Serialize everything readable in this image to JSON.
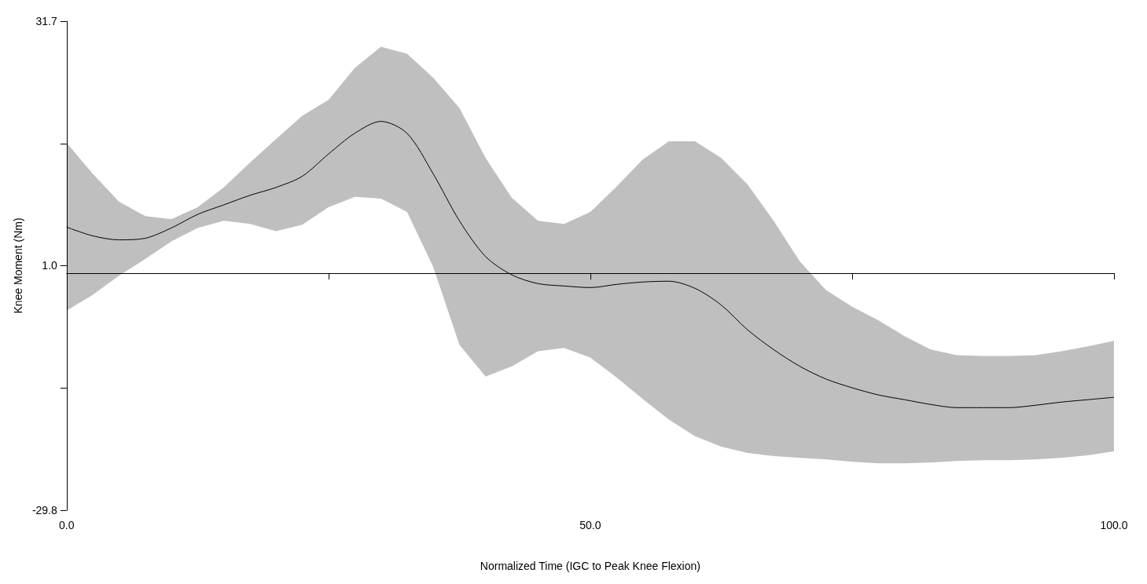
{
  "chart_data": {
    "type": "line",
    "xlabel": "Normalized Time (IGC to Peak Knee Flexion)",
    "ylabel": "Knee Moment (Nm)",
    "x": [
      0,
      2.5,
      5,
      7.5,
      10,
      12.5,
      15,
      17.5,
      20,
      22.5,
      25,
      27.5,
      30,
      32.5,
      35,
      37.5,
      40,
      42.5,
      45,
      47.5,
      50,
      52.5,
      55,
      57.5,
      60,
      62.5,
      65,
      67.5,
      70,
      72.5,
      75,
      77.5,
      80,
      82.5,
      85,
      87.5,
      90,
      92.5,
      95,
      97.5,
      100
    ],
    "series": [
      {
        "color": "#000000",
        "values": [
          5.8,
          4.7,
          4.2,
          4.4,
          5.7,
          7.4,
          8.6,
          9.8,
          10.8,
          12.2,
          15.0,
          17.6,
          19.1,
          17.6,
          12.5,
          6.6,
          2.1,
          -0.2,
          -1.3,
          -1.6,
          -1.8,
          -1.4,
          -1.1,
          -1.0,
          -1.9,
          -4.0,
          -7.1,
          -9.6,
          -11.7,
          -13.3,
          -14.4,
          -15.3,
          -15.9,
          -16.5,
          -16.9,
          -16.9,
          -16.9,
          -16.6,
          -16.2,
          -15.9,
          -15.6
        ],
        "upper": [
          16.4,
          12.5,
          9.0,
          7.2,
          6.8,
          8.3,
          10.8,
          13.9,
          16.9,
          19.8,
          21.8,
          25.8,
          28.5,
          27.6,
          24.6,
          20.8,
          14.5,
          9.5,
          6.6,
          6.2,
          7.7,
          10.9,
          14.3,
          16.6,
          16.6,
          14.5,
          11.2,
          6.6,
          1.5,
          -2.1,
          -4.2,
          -5.9,
          -7.9,
          -9.6,
          -10.3,
          -10.4,
          -10.4,
          -10.3,
          -9.8,
          -9.2,
          -8.5
        ],
        "lower": [
          -4.7,
          -2.7,
          -0.3,
          1.8,
          4.0,
          5.7,
          6.6,
          6.2,
          5.3,
          6.1,
          8.3,
          9.6,
          9.4,
          7.7,
          0.8,
          -9.0,
          -13.0,
          -11.7,
          -9.8,
          -9.4,
          -10.6,
          -13.1,
          -15.8,
          -18.4,
          -20.5,
          -21.8,
          -22.6,
          -23.0,
          -23.2,
          -23.4,
          -23.7,
          -23.9,
          -23.9,
          -23.8,
          -23.6,
          -23.5,
          -23.5,
          -23.4,
          -23.2,
          -22.9,
          -22.4
        ]
      }
    ],
    "xlim": [
      0,
      100
    ],
    "xticks": [
      {
        "value": 0,
        "label": "0.0"
      },
      {
        "value": 25,
        "label": null
      },
      {
        "value": 50,
        "label": "50.0"
      },
      {
        "value": 75,
        "label": null
      },
      {
        "value": 100,
        "label": "100.0"
      }
    ],
    "ylim": [
      -29.8,
      31.7
    ],
    "yticks": [
      -29.8,
      {
        "value": -14.4,
        "label": null
      },
      {
        "value": 1.0,
        "label": "1.0"
      },
      {
        "value": 16.3,
        "label": null
      },
      31.7
    ],
    "ref_lines": [
      {
        "axis": "y",
        "value": 0,
        "color": "#000000"
      }
    ],
    "grid": false,
    "marker": "none",
    "line_style": "solid"
  }
}
